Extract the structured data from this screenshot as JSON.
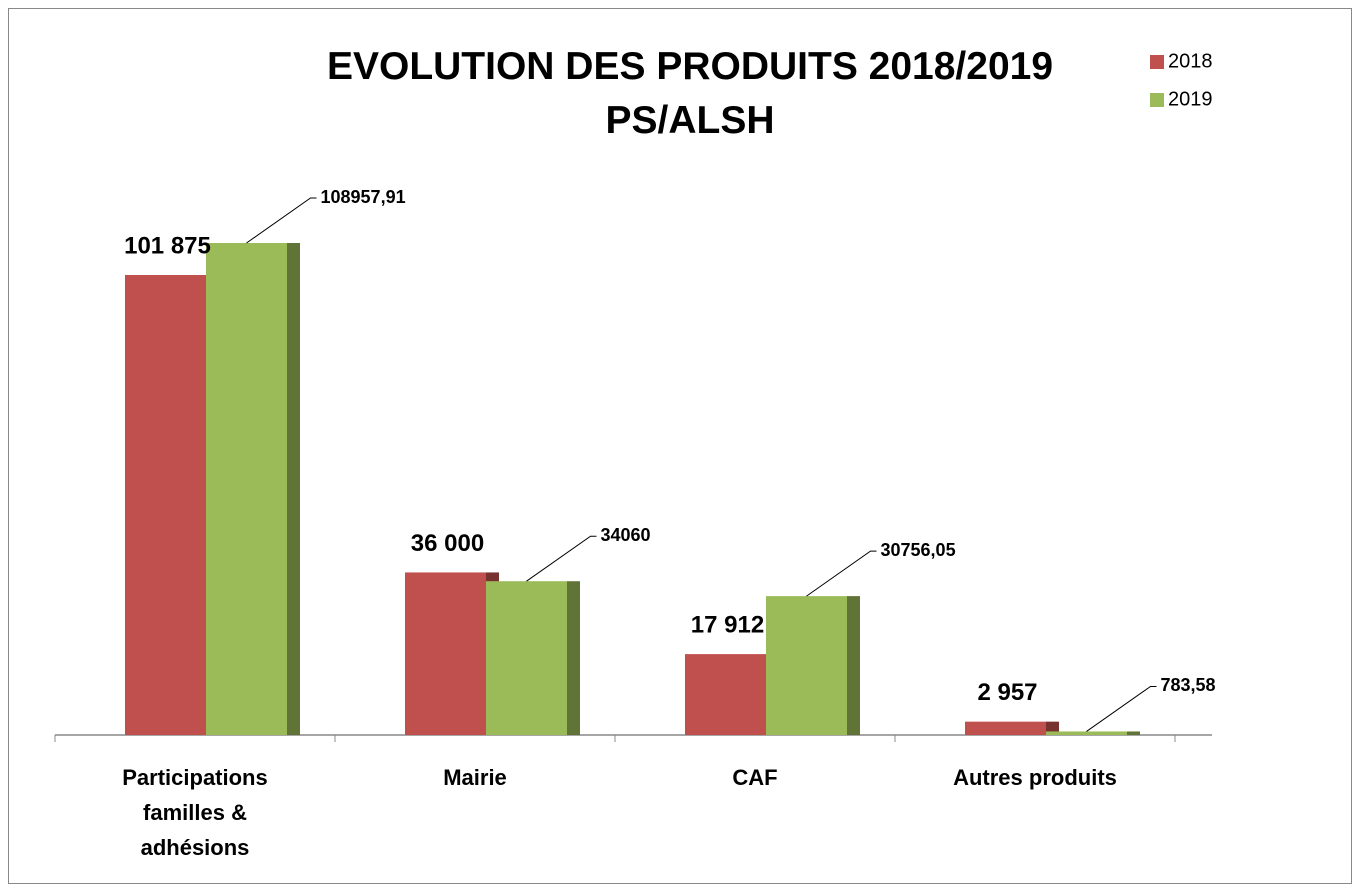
{
  "chart_data": {
    "type": "bar",
    "title": "EVOLUTION DES PRODUITS 2018/2019 PS/ALSH",
    "categories": [
      "Participations familles & adhésions",
      "Mairie",
      "CAF",
      "Autres produits"
    ],
    "series": [
      {
        "name": "2018",
        "color": "#c0504d",
        "values": [
          101875,
          36000,
          17912,
          2957
        ],
        "value_labels": [
          "101 875",
          "36 000",
          "17 912",
          "2 957"
        ]
      },
      {
        "name": "2019",
        "color": "#9bbb59",
        "values": [
          108957.91,
          34060,
          30756.05,
          783.58
        ],
        "value_labels": [
          "108957,91",
          "34060",
          "30756,05",
          "783,58"
        ]
      }
    ],
    "legend": "top-right"
  }
}
